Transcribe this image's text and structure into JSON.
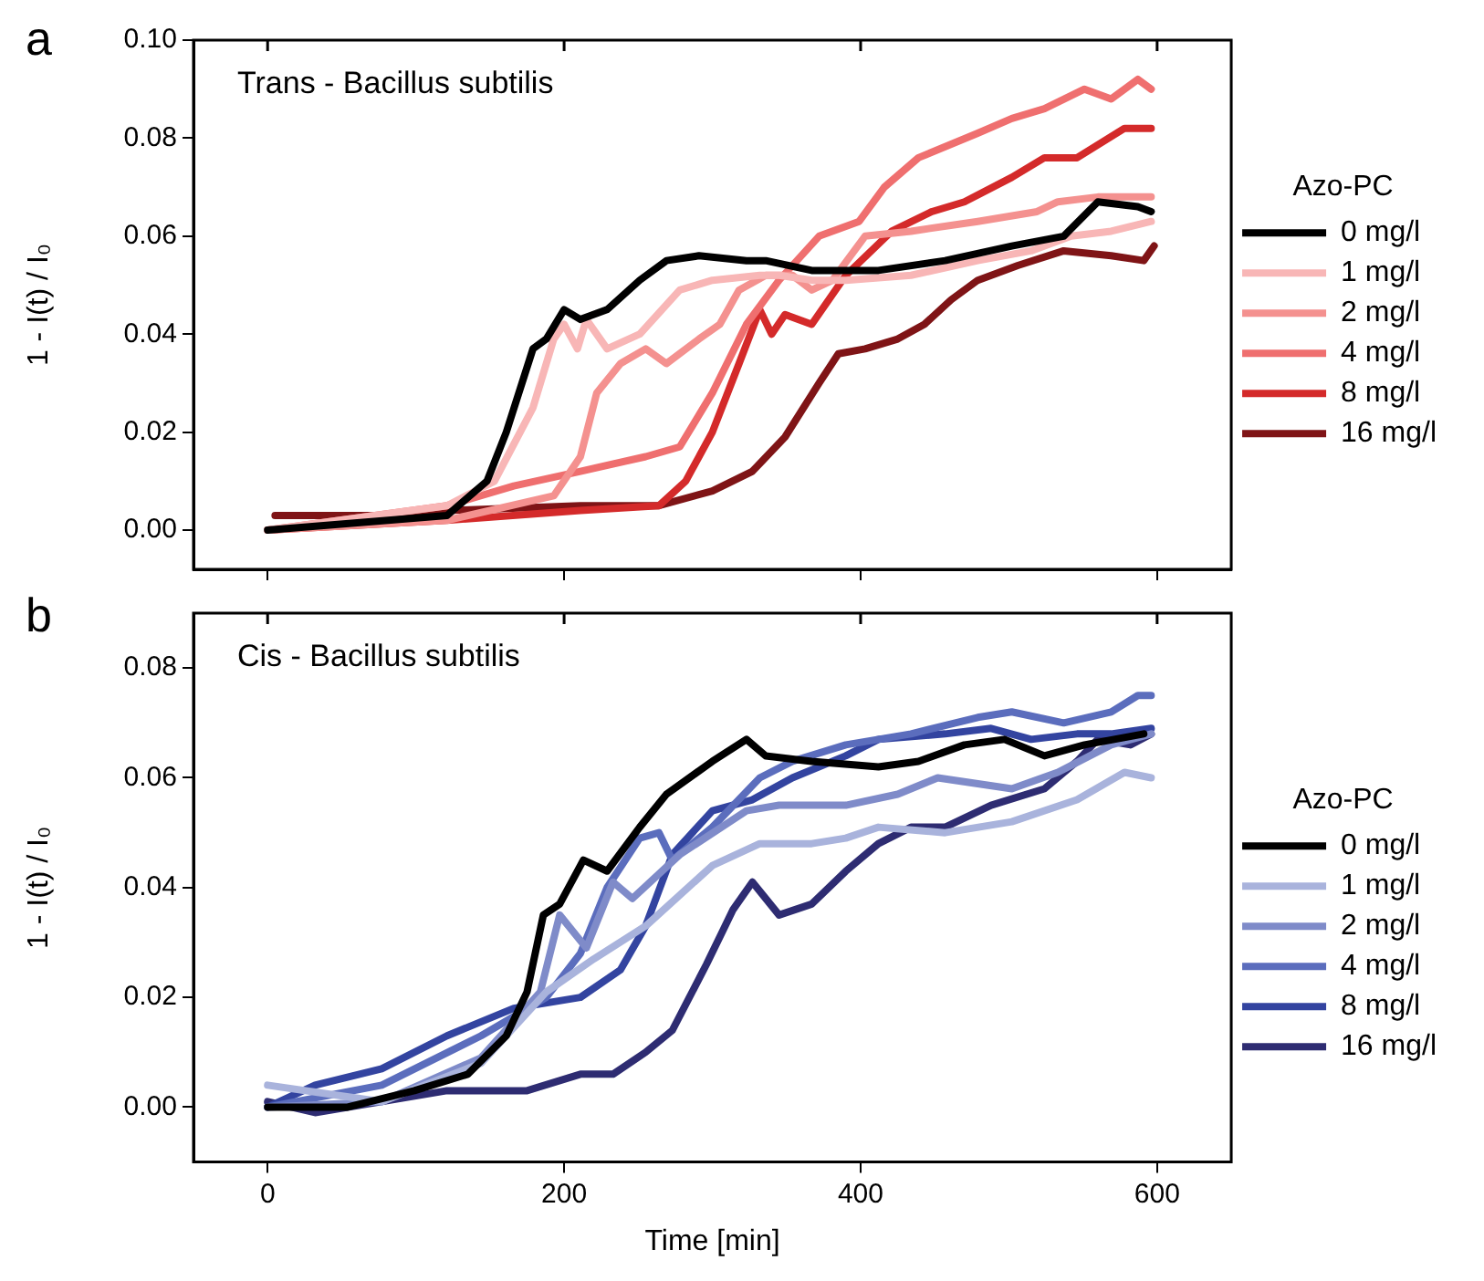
{
  "chart_data": [
    {
      "type": "line",
      "title": "Trans - Bacillus subtilis",
      "ylabel": "1 - I(t) / I₀",
      "annotations": [
        "a"
      ],
      "legend_title": "Azo-PC",
      "legend": "right",
      "grid": false,
      "marker": "none",
      "line_style": "solid",
      "tick_labels": "y",
      "xlim": [
        -50,
        650
      ],
      "xticks": [
        0,
        200,
        400,
        600
      ],
      "ylim": [
        -0.008,
        0.1
      ],
      "yticks": [
        {
          "value": 0,
          "label": "0.00"
        },
        {
          "value": 0.02,
          "label": "0.02"
        },
        {
          "value": 0.04,
          "label": "0.04"
        },
        {
          "value": 0.06,
          "label": "0.06"
        },
        {
          "value": 0.08,
          "label": "0.08"
        },
        {
          "value": 0.1,
          "label": "0.10"
        }
      ],
      "series": [
        {
          "name": "0 mg/l",
          "color": "#000000",
          "x": [
            0,
            121,
            148,
            161,
            179,
            188,
            200,
            211,
            229,
            251,
            269,
            291,
            323,
            336,
            367,
            412,
            457,
            502,
            537,
            560,
            587,
            596
          ],
          "values": [
            0,
            0.003,
            0.01,
            0.02,
            0.037,
            0.039,
            0.045,
            0.043,
            0.045,
            0.051,
            0.055,
            0.056,
            0.055,
            0.055,
            0.053,
            0.053,
            0.055,
            0.058,
            0.06,
            0.067,
            0.066,
            0.065
          ]
        },
        {
          "name": "1 mg/l",
          "color": "#f8b6b6",
          "x": [
            0,
            121,
            153,
            179,
            193,
            200,
            209,
            215,
            229,
            251,
            278,
            300,
            332,
            345,
            367,
            390,
            434,
            479,
            515,
            542,
            569,
            596
          ],
          "values": [
            0,
            0.005,
            0.01,
            0.025,
            0.039,
            0.042,
            0.037,
            0.043,
            0.037,
            0.04,
            0.049,
            0.051,
            0.052,
            0.052,
            0.051,
            0.051,
            0.052,
            0.055,
            0.057,
            0.06,
            0.061,
            0.063
          ]
        },
        {
          "name": "2 mg/l",
          "color": "#f4918f",
          "x": [
            0,
            121,
            193,
            211,
            222,
            238,
            255,
            269,
            291,
            305,
            318,
            336,
            354,
            367,
            381,
            403,
            434,
            479,
            519,
            533,
            560,
            596
          ],
          "values": [
            0,
            0.002,
            0.007,
            0.015,
            0.028,
            0.034,
            0.037,
            0.034,
            0.039,
            0.042,
            0.049,
            0.052,
            0.052,
            0.049,
            0.051,
            0.06,
            0.061,
            0.063,
            0.065,
            0.067,
            0.068,
            0.068
          ]
        },
        {
          "name": "4 mg/l",
          "color": "#ef6f6f",
          "x": [
            0,
            121,
            166,
            211,
            255,
            278,
            300,
            323,
            345,
            372,
            399,
            416,
            439,
            479,
            502,
            524,
            551,
            569,
            587,
            596
          ],
          "values": [
            0,
            0.005,
            0.009,
            0.012,
            0.015,
            0.017,
            0.028,
            0.042,
            0.051,
            0.06,
            0.063,
            0.07,
            0.076,
            0.081,
            0.084,
            0.086,
            0.09,
            0.088,
            0.092,
            0.09
          ]
        },
        {
          "name": "8 mg/l",
          "color": "#d42a2a",
          "x": [
            0,
            121,
            211,
            264,
            282,
            300,
            318,
            332,
            340,
            349,
            367,
            390,
            421,
            448,
            470,
            502,
            524,
            546,
            578,
            596
          ],
          "values": [
            0,
            0.002,
            0.004,
            0.005,
            0.01,
            0.02,
            0.034,
            0.045,
            0.04,
            0.044,
            0.042,
            0.052,
            0.061,
            0.065,
            0.067,
            0.072,
            0.076,
            0.076,
            0.082,
            0.082
          ]
        },
        {
          "name": "16 mg/l",
          "color": "#7f1416",
          "x": [
            5,
            77,
            121,
            211,
            264,
            300,
            327,
            349,
            372,
            385,
            403,
            425,
            443,
            461,
            479,
            506,
            537,
            569,
            591,
            598
          ],
          "values": [
            0.003,
            0.003,
            0.004,
            0.005,
            0.005,
            0.008,
            0.012,
            0.019,
            0.03,
            0.036,
            0.037,
            0.039,
            0.042,
            0.047,
            0.051,
            0.054,
            0.057,
            0.056,
            0.055,
            0.058
          ]
        }
      ]
    },
    {
      "type": "line",
      "title": "Cis - Bacillus subtilis",
      "ylabel": "1 - I(t) / I₀",
      "xlabel": "Time [min]",
      "annotations": [
        "b"
      ],
      "legend_title": "Azo-PC",
      "legend": "right",
      "grid": false,
      "marker": "none",
      "line_style": "solid",
      "xlim": [
        -50,
        650
      ],
      "xticks": [
        0,
        200,
        400,
        600
      ],
      "ylim": [
        -0.01,
        0.09
      ],
      "yticks": [
        {
          "value": 0,
          "label": "0.00"
        },
        {
          "value": 0.02,
          "label": "0.02"
        },
        {
          "value": 0.04,
          "label": "0.04"
        },
        {
          "value": 0.06,
          "label": "0.06"
        },
        {
          "value": 0.08,
          "label": "0.08"
        }
      ],
      "series": [
        {
          "name": "0 mg/l",
          "color": "#000000",
          "x": [
            0,
            54,
            99,
            135,
            161,
            175,
            186,
            197,
            213,
            229,
            251,
            269,
            300,
            323,
            336,
            367,
            412,
            439,
            470,
            497,
            524,
            551,
            591
          ],
          "values": [
            0,
            0,
            0.003,
            0.006,
            0.013,
            0.021,
            0.035,
            0.037,
            0.045,
            0.043,
            0.051,
            0.057,
            0.063,
            0.067,
            0.064,
            0.063,
            0.062,
            0.063,
            0.066,
            0.067,
            0.064,
            0.066,
            0.068
          ]
        },
        {
          "name": "1 mg/l",
          "color": "#a9b3dc",
          "x": [
            0,
            77,
            144,
            188,
            220,
            255,
            300,
            332,
            367,
            390,
            412,
            457,
            502,
            546,
            578,
            596
          ],
          "values": [
            0.004,
            0.001,
            0.008,
            0.021,
            0.027,
            0.033,
            0.044,
            0.048,
            0.048,
            0.049,
            0.051,
            0.05,
            0.052,
            0.056,
            0.061,
            0.06
          ]
        },
        {
          "name": "2 mg/l",
          "color": "#7f8bc9",
          "x": [
            0,
            77,
            144,
            184,
            197,
            215,
            233,
            246,
            278,
            323,
            345,
            390,
            425,
            452,
            502,
            533,
            569,
            596
          ],
          "values": [
            0,
            0.001,
            0.009,
            0.021,
            0.035,
            0.029,
            0.041,
            0.038,
            0.046,
            0.054,
            0.055,
            0.055,
            0.057,
            0.06,
            0.058,
            0.061,
            0.066,
            0.068
          ]
        },
        {
          "name": "4 mg/l",
          "color": "#5b6dbd",
          "x": [
            0,
            77,
            144,
            188,
            211,
            229,
            251,
            264,
            273,
            300,
            332,
            354,
            390,
            434,
            479,
            502,
            537,
            569,
            587,
            596
          ],
          "values": [
            0,
            0.004,
            0.013,
            0.02,
            0.028,
            0.04,
            0.049,
            0.05,
            0.045,
            0.051,
            0.06,
            0.063,
            0.066,
            0.068,
            0.071,
            0.072,
            0.07,
            0.072,
            0.075,
            0.075
          ]
        },
        {
          "name": "8 mg/l",
          "color": "#3344a0",
          "x": [
            0,
            32,
            77,
            121,
            166,
            211,
            238,
            255,
            273,
            300,
            327,
            354,
            390,
            412,
            457,
            488,
            515,
            546,
            569,
            596
          ],
          "values": [
            0,
            0.004,
            0.007,
            0.013,
            0.018,
            0.02,
            0.025,
            0.033,
            0.046,
            0.054,
            0.056,
            0.06,
            0.064,
            0.067,
            0.068,
            0.069,
            0.067,
            0.068,
            0.068,
            0.069
          ]
        },
        {
          "name": "16 mg/l",
          "color": "#2e2c72",
          "x": [
            0,
            32,
            77,
            121,
            175,
            211,
            233,
            255,
            273,
            296,
            314,
            327,
            345,
            367,
            390,
            412,
            434,
            457,
            488,
            524,
            546,
            560,
            582,
            596
          ],
          "values": [
            0.001,
            -0.001,
            0.001,
            0.003,
            0.003,
            0.006,
            0.006,
            0.01,
            0.014,
            0.026,
            0.036,
            0.041,
            0.035,
            0.037,
            0.043,
            0.048,
            0.051,
            0.051,
            0.055,
            0.058,
            0.063,
            0.067,
            0.066,
            0.068
          ]
        }
      ]
    }
  ]
}
